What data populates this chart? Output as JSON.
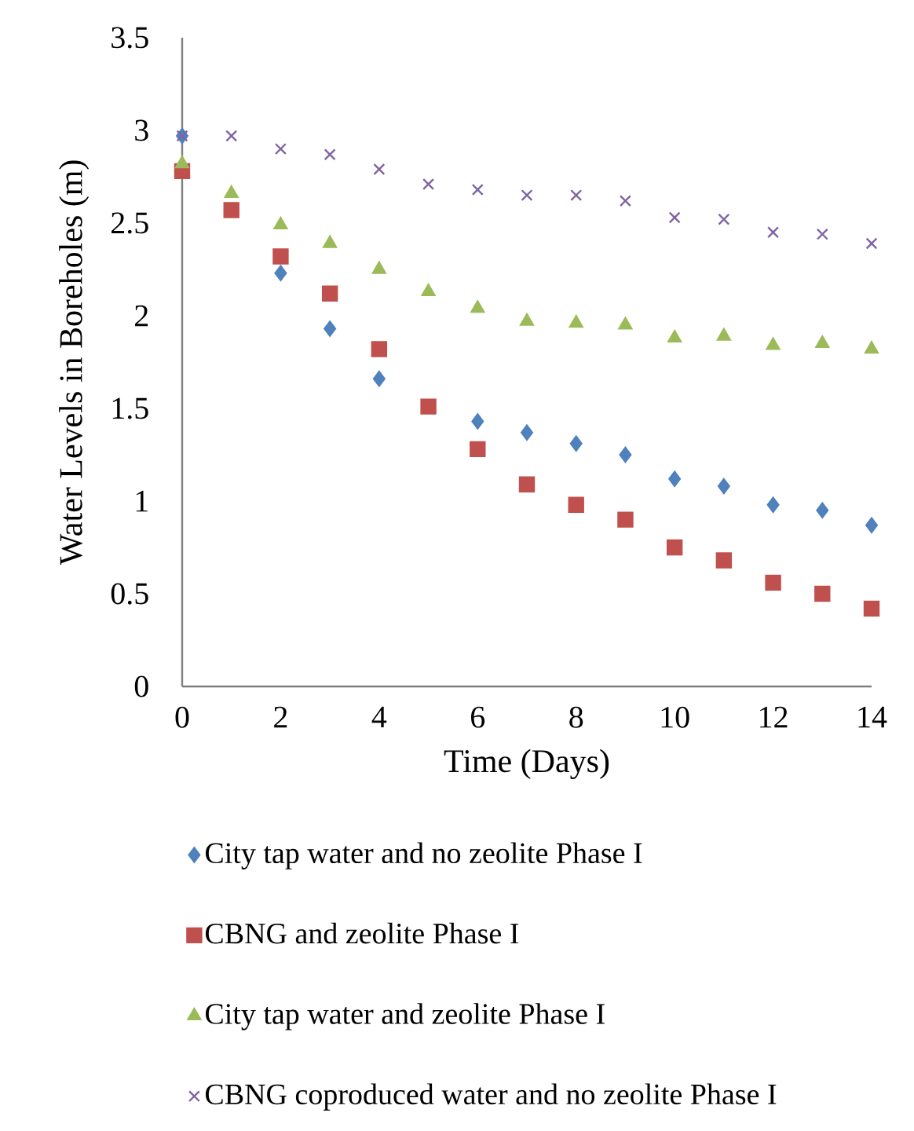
{
  "chart_data": {
    "type": "scatter",
    "xlabel": "Time (Days)",
    "ylabel": "Water Levels in Boreholes (m)",
    "x": [
      0,
      1,
      2,
      3,
      4,
      5,
      6,
      7,
      8,
      9,
      10,
      11,
      12,
      13,
      14
    ],
    "xlim": [
      0,
      14
    ],
    "xticks": [
      0,
      2,
      4,
      6,
      8,
      10,
      12,
      14
    ],
    "ylim": [
      0,
      3.5
    ],
    "yticks": [
      0,
      0.5,
      1,
      1.5,
      2,
      2.5,
      3,
      3.5
    ],
    "grid": false,
    "legend": "bottom",
    "series": [
      {
        "name": "City tap water and no zeolite Phase I",
        "color": "#4f81bd",
        "marker": "diamond",
        "values": [
          2.97,
          null,
          2.23,
          1.93,
          1.66,
          null,
          1.43,
          1.37,
          1.31,
          1.25,
          1.12,
          1.08,
          0.98,
          0.95,
          0.87
        ]
      },
      {
        "name": "CBNG and zeolite Phase I",
        "color": "#c0504d",
        "marker": "square",
        "values": [
          2.78,
          2.57,
          2.32,
          2.12,
          1.82,
          1.51,
          1.28,
          1.09,
          0.98,
          0.9,
          0.75,
          0.68,
          0.56,
          0.5,
          0.42
        ]
      },
      {
        "name": "City tap water and  zeolite Phase I",
        "color": "#9bbb59",
        "marker": "triangle",
        "values": [
          2.82,
          2.66,
          2.49,
          2.39,
          2.25,
          2.13,
          2.04,
          1.97,
          1.96,
          1.95,
          1.88,
          1.89,
          1.84,
          1.85,
          1.82
        ]
      },
      {
        "name": "CBNG coproduced water and no zeolite Phase I",
        "color": "#8064a2",
        "marker": "cross",
        "values": [
          2.97,
          2.97,
          2.9,
          2.87,
          2.79,
          2.71,
          2.68,
          2.65,
          2.65,
          2.62,
          2.53,
          2.52,
          2.45,
          2.44,
          2.39
        ]
      }
    ]
  }
}
